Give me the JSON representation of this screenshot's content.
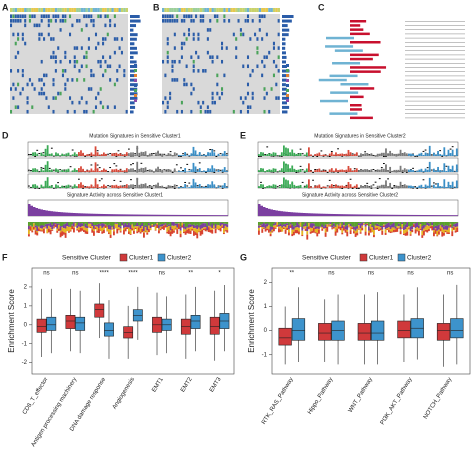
{
  "panel_labels": [
    "A",
    "B",
    "C",
    "D",
    "E",
    "F",
    "G"
  ],
  "panel_d": {
    "title": "Mutation Signatures in Sensitive Cluster1",
    "subtitle": "Signature Activity across Sensitive Cluster1"
  },
  "panel_e": {
    "title": "Mutation Signatures in Sensitive Cluster2",
    "subtitle": "Signature Activity across Sensitive Cluster2"
  },
  "chart_data": [
    {
      "type": "box",
      "ylabel": "Enrichment Score",
      "legend_title": "Sensitive Cluster",
      "categories": [
        "CD8_T_effector",
        "Antigen processing machinery",
        "DNA damage response",
        "Angiogenesis",
        "EMT1",
        "EMT2",
        "EMT3"
      ],
      "significance": [
        "ns",
        "ns",
        "****",
        "****",
        "ns",
        "**",
        "*"
      ],
      "ylim": [
        -2.6,
        3
      ],
      "yticks": [
        -2,
        -1,
        0,
        1,
        2
      ],
      "series": [
        {
          "name": "Cluster1",
          "color": "#d0393b",
          "values": [
            {
              "min": -1.7,
              "q1": -0.4,
              "median": -0.1,
              "q3": 0.3,
              "max": 1.9
            },
            {
              "min": -1.4,
              "q1": -0.2,
              "median": 0.2,
              "q3": 0.5,
              "max": 1.9
            },
            {
              "min": -0.7,
              "q1": 0.4,
              "median": 0.8,
              "q3": 1.1,
              "max": 2.2
            },
            {
              "min": -1.8,
              "q1": -0.7,
              "median": -0.4,
              "q3": -0.1,
              "max": 1.0
            },
            {
              "min": -1.6,
              "q1": -0.4,
              "median": 0.0,
              "q3": 0.4,
              "max": 1.7
            },
            {
              "min": -1.8,
              "q1": -0.5,
              "median": -0.1,
              "q3": 0.3,
              "max": 1.6
            },
            {
              "min": -1.9,
              "q1": -0.5,
              "median": -0.1,
              "q3": 0.4,
              "max": 1.8
            }
          ]
        },
        {
          "name": "Cluster2",
          "color": "#3d93cc",
          "values": [
            {
              "min": -1.5,
              "q1": -0.3,
              "median": 0.0,
              "q3": 0.4,
              "max": 1.9
            },
            {
              "min": -1.5,
              "q1": -0.3,
              "median": 0.1,
              "q3": 0.4,
              "max": 1.8
            },
            {
              "min": -1.8,
              "q1": -0.6,
              "median": -0.3,
              "q3": 0.1,
              "max": 1.3
            },
            {
              "min": -0.8,
              "q1": 0.2,
              "median": 0.5,
              "q3": 0.8,
              "max": 2.0
            },
            {
              "min": -1.5,
              "q1": -0.3,
              "median": 0.0,
              "q3": 0.3,
              "max": 1.5
            },
            {
              "min": -1.4,
              "q1": -0.2,
              "median": 0.2,
              "q3": 0.5,
              "max": 2.0
            },
            {
              "min": -1.4,
              "q1": -0.2,
              "median": 0.2,
              "q3": 0.6,
              "max": 2.1
            }
          ]
        }
      ]
    },
    {
      "type": "box",
      "ylabel": "Enrichment Score",
      "legend_title": "Sensitive Cluster",
      "categories": [
        "RTK_RAS_Pathway",
        "Hippo_Pathway",
        "WNT_Pathway",
        "PI3K_AKT_Pathway",
        "NOTCH_Pathway"
      ],
      "significance": [
        "**",
        "ns",
        "ns",
        "ns",
        "ns"
      ],
      "ylim": [
        -1.8,
        2.6
      ],
      "yticks": [
        -1,
        0,
        1,
        2
      ],
      "series": [
        {
          "name": "Cluster1",
          "color": "#d0393b",
          "values": [
            {
              "min": -1.4,
              "q1": -0.6,
              "median": -0.3,
              "q3": 0.1,
              "max": 1.0
            },
            {
              "min": -1.3,
              "q1": -0.4,
              "median": -0.1,
              "q3": 0.3,
              "max": 1.3
            },
            {
              "min": -1.4,
              "q1": -0.4,
              "median": -0.1,
              "q3": 0.3,
              "max": 1.5
            },
            {
              "min": -1.3,
              "q1": -0.3,
              "median": 0.0,
              "q3": 0.4,
              "max": 1.5
            },
            {
              "min": -1.5,
              "q1": -0.4,
              "median": 0.0,
              "q3": 0.3,
              "max": 1.5
            }
          ]
        },
        {
          "name": "Cluster2",
          "color": "#3d93cc",
          "values": [
            {
              "min": -1.3,
              "q1": -0.4,
              "median": 0.0,
              "q3": 0.5,
              "max": 1.8
            },
            {
              "min": -1.4,
              "q1": -0.4,
              "median": 0.0,
              "q3": 0.4,
              "max": 1.5
            },
            {
              "min": -1.4,
              "q1": -0.4,
              "median": -0.1,
              "q3": 0.4,
              "max": 1.6
            },
            {
              "min": -1.2,
              "q1": -0.3,
              "median": 0.1,
              "q3": 0.5,
              "max": 1.8
            },
            {
              "min": -1.4,
              "q1": -0.3,
              "median": 0.0,
              "q3": 0.5,
              "max": 1.9
            }
          ]
        }
      ]
    }
  ]
}
